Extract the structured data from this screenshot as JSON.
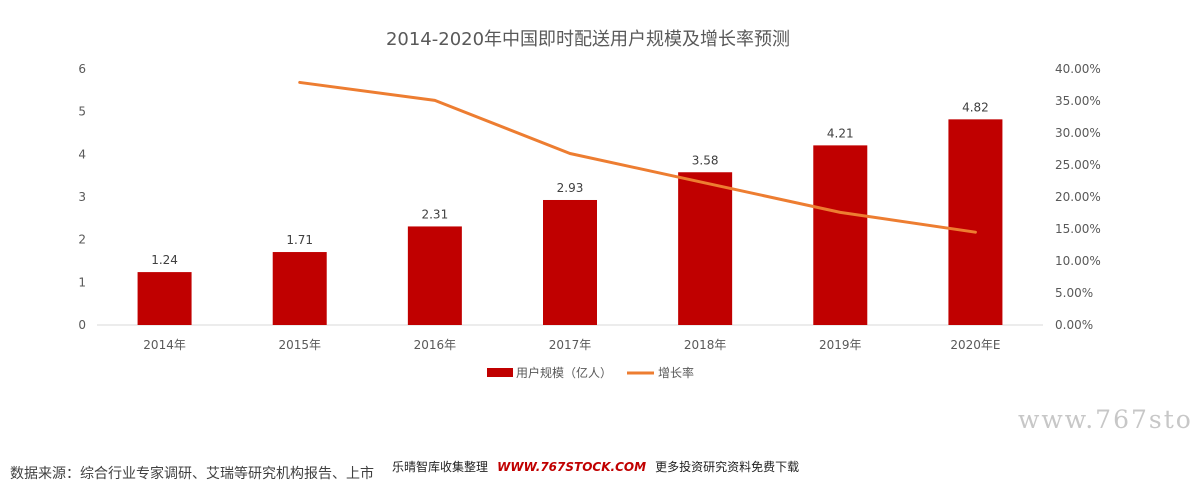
{
  "chart_data": {
    "type": "bar",
    "title": "2014-2020年中国即时配送用户规模及增长率预测",
    "categories": [
      "2014年",
      "2015年",
      "2016年",
      "2017年",
      "2018年",
      "2019年",
      "2020年E"
    ],
    "series": [
      {
        "name": "用户规模（亿人）",
        "type": "bar",
        "axis": "left",
        "color": "#c00000",
        "values": [
          1.24,
          1.71,
          2.31,
          2.93,
          3.58,
          4.21,
          4.82
        ],
        "labels": [
          "1.24",
          "1.71",
          "2.31",
          "2.93",
          "3.58",
          "4.21",
          "4.82"
        ]
      },
      {
        "name": "增长率",
        "type": "line",
        "axis": "right",
        "color": "#ed7d31",
        "values": [
          null,
          37.9,
          35.1,
          26.8,
          22.2,
          17.6,
          14.5
        ]
      }
    ],
    "y_left": {
      "ticks": [
        "0",
        "1",
        "2",
        "3",
        "4",
        "5",
        "6"
      ],
      "ylim": [
        0,
        6
      ]
    },
    "y_right": {
      "ticks": [
        "0.00%",
        "5.00%",
        "10.00%",
        "15.00%",
        "20.00%",
        "25.00%",
        "30.00%",
        "35.00%",
        "40.00%"
      ],
      "ylim": [
        0,
        40
      ]
    },
    "legend_position": "bottom",
    "grid": false
  },
  "footer": {
    "source": "数据来源：综合行业专家调研、艾瑞等研究机构报告、上市",
    "overlay_text": "乐晴智库收集整理",
    "overlay_url": "WWW.767STOCK.COM",
    "overlay_suffix": "更多投资研究资料免费下载"
  },
  "watermark": "www.767sto"
}
